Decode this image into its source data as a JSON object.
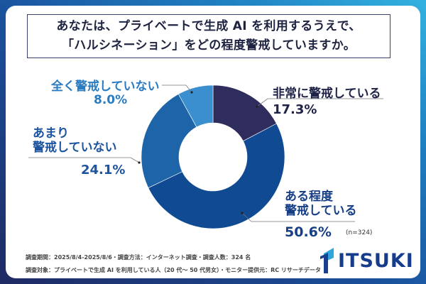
{
  "title": {
    "line1": "あなたは、プライベートで生成 AI を利用するうえで、",
    "line2": "「ハルシネーション」をどの程度警戒していますか。"
  },
  "chart_data": {
    "type": "pie",
    "donut": true,
    "title": "あなたは、プライベートで生成 AI を利用するうえで、「ハルシネーション」をどの程度警戒していますか。",
    "categories": [
      "非常に警戒している",
      "ある程度警戒している",
      "あまり警戒していない",
      "全く警戒していない"
    ],
    "values": [
      17.3,
      50.6,
      24.1,
      8.0
    ],
    "value_labels": [
      "17.3%",
      "50.6%",
      "24.1%",
      "8.0%"
    ],
    "label_lines": [
      [
        "非常に警戒している"
      ],
      [
        "ある程度",
        "警戒している"
      ],
      [
        "あまり",
        "警戒していない"
      ],
      [
        "全く警戒していない"
      ]
    ],
    "colors": [
      "#2e2d5e",
      "#0f4a92",
      "#1d65a8",
      "#3b8fcf"
    ],
    "label_colors": [
      "#1f2347",
      "#163f86",
      "#1d55a0",
      "#2a7cc2"
    ],
    "start": "12 o'clock, clockwise",
    "unit": "%",
    "sample_size": "(n=324)"
  },
  "footer": {
    "line1": "調査期間：2025/8/4-2025/8/6・調査方法：インターネット調査・調査人数：324 名",
    "line2": "調査対象：プライベートで生成 AI を利用している人（20 代～ 50 代男女）・モニター提供元：RC リサーチデータ"
  },
  "logo": {
    "text": "ITSUKI"
  }
}
